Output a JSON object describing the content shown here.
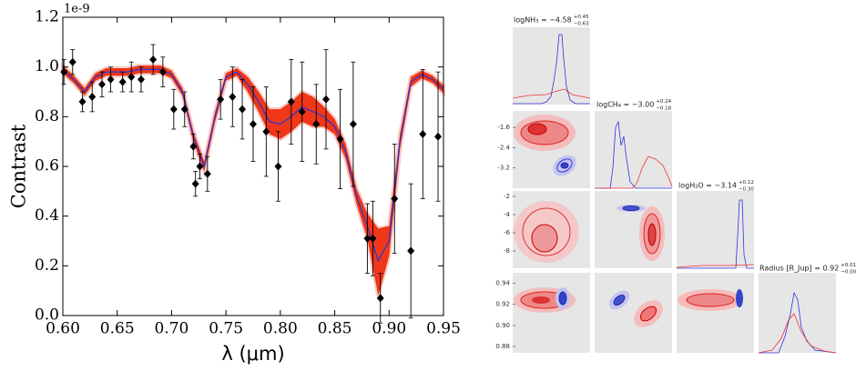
{
  "chart_data": {
    "type": "line",
    "offset_text": "1e-9",
    "xlabel": "λ (μm)",
    "ylabel": "Contrast",
    "xlim": [
      0.6,
      0.95
    ],
    "ylim": [
      0,
      1.2
    ],
    "xticks": [
      {
        "value": 0.6,
        "label": "0.60"
      },
      0.65,
      {
        "value": 0.7,
        "label": "0.70"
      },
      0.75,
      {
        "value": 0.8,
        "label": "0.80"
      },
      0.85,
      {
        "value": 0.9,
        "label": "0.90"
      },
      0.95
    ],
    "yticks": [
      {
        "value": 0,
        "label": "0.0"
      },
      0.2,
      0.4,
      0.6,
      0.8,
      {
        "value": 1,
        "label": "1.0"
      },
      1.2
    ],
    "model": {
      "color": "#2233dd",
      "band_color": "#ee2200",
      "x": [
        0.6,
        0.61,
        0.62,
        0.63,
        0.64,
        0.65,
        0.66,
        0.67,
        0.68,
        0.69,
        0.7,
        0.71,
        0.72,
        0.73,
        0.74,
        0.75,
        0.76,
        0.77,
        0.78,
        0.79,
        0.8,
        0.81,
        0.82,
        0.83,
        0.84,
        0.85,
        0.86,
        0.87,
        0.88,
        0.89,
        0.9,
        0.91,
        0.92,
        0.93,
        0.94,
        0.95
      ],
      "values": [
        0.99,
        0.95,
        0.9,
        0.96,
        0.98,
        0.98,
        0.98,
        0.99,
        0.99,
        0.99,
        0.97,
        0.9,
        0.72,
        0.6,
        0.8,
        0.96,
        0.98,
        0.93,
        0.86,
        0.78,
        0.77,
        0.8,
        0.84,
        0.82,
        0.8,
        0.76,
        0.66,
        0.48,
        0.36,
        0.22,
        0.3,
        0.7,
        0.94,
        0.97,
        0.95,
        0.91
      ],
      "band_lower": [
        0.975,
        0.935,
        0.885,
        0.945,
        0.965,
        0.965,
        0.965,
        0.975,
        0.975,
        0.975,
        0.955,
        0.885,
        0.7,
        0.58,
        0.78,
        0.945,
        0.965,
        0.9,
        0.82,
        0.73,
        0.71,
        0.74,
        0.78,
        0.76,
        0.76,
        0.73,
        0.63,
        0.45,
        0.31,
        0.08,
        0.24,
        0.67,
        0.92,
        0.955,
        0.935,
        0.895
      ],
      "band_upper": [
        1.005,
        0.965,
        0.915,
        0.975,
        0.995,
        0.995,
        0.995,
        1.005,
        1.005,
        1.005,
        0.985,
        0.915,
        0.74,
        0.62,
        0.82,
        0.975,
        0.995,
        0.96,
        0.9,
        0.83,
        0.83,
        0.86,
        0.9,
        0.88,
        0.84,
        0.79,
        0.69,
        0.51,
        0.41,
        0.35,
        0.36,
        0.73,
        0.96,
        0.985,
        0.965,
        0.925
      ]
    },
    "observations": {
      "color": "#000000",
      "x": [
        0.601,
        0.609,
        0.618,
        0.627,
        0.636,
        0.644,
        0.655,
        0.663,
        0.672,
        0.683,
        0.692,
        0.702,
        0.712,
        0.72,
        0.722,
        0.726,
        0.733,
        0.745,
        0.756,
        0.765,
        0.775,
        0.787,
        0.798,
        0.81,
        0.82,
        0.833,
        0.842,
        0.855,
        0.867,
        0.88,
        0.885,
        0.892,
        0.905,
        0.92,
        0.931,
        0.945
      ],
      "values": [
        0.98,
        1.02,
        0.86,
        0.88,
        0.93,
        0.95,
        0.94,
        0.96,
        0.95,
        1.03,
        0.98,
        0.83,
        0.83,
        0.68,
        0.53,
        0.6,
        0.57,
        0.87,
        0.88,
        0.83,
        0.77,
        0.74,
        0.6,
        0.86,
        0.82,
        0.77,
        0.87,
        0.71,
        0.77,
        0.31,
        0.31,
        0.07,
        0.47,
        0.26,
        0.73,
        0.72
      ],
      "errors": [
        0.05,
        0.05,
        0.04,
        0.06,
        0.05,
        0.05,
        0.04,
        0.06,
        0.05,
        0.06,
        0.06,
        0.08,
        0.07,
        0.05,
        0.05,
        0.05,
        0.07,
        0.08,
        0.12,
        0.12,
        0.15,
        0.18,
        0.14,
        0.17,
        0.2,
        0.16,
        0.2,
        0.2,
        0.25,
        0.14,
        0.15,
        0.1,
        0.22,
        0.27,
        0.26,
        0.26
      ]
    }
  },
  "corner": {
    "titles": [
      {
        "text": "logNH₃ = −4.58",
        "upper": "+0.45",
        "lower": "−0.63"
      },
      {
        "text": "logCH₄ = −3.00",
        "upper": "+0.24",
        "lower": "−0.18"
      },
      {
        "text": "logH₂O = −3.14",
        "upper": "+0.12",
        "lower": "−0.30"
      },
      {
        "text": "Radius [R_Jup] = 0.92",
        "upper": "+0.01",
        "lower": "−0.00"
      }
    ],
    "rows": [
      {
        "ylim": [
          -4.0,
          -0.95
        ],
        "yticks": [
          -1.6,
          -2.4,
          -3.2
        ]
      },
      {
        "ylim": [
          -9.9,
          -1.4
        ],
        "yticks": [
          -2,
          -4,
          -6,
          -8
        ]
      },
      {
        "ylim": [
          0.874,
          0.95
        ],
        "yticks": [
          0.94,
          0.92,
          {
            "value": 0.9,
            "label": "0.90"
          },
          0.88
        ]
      }
    ]
  }
}
